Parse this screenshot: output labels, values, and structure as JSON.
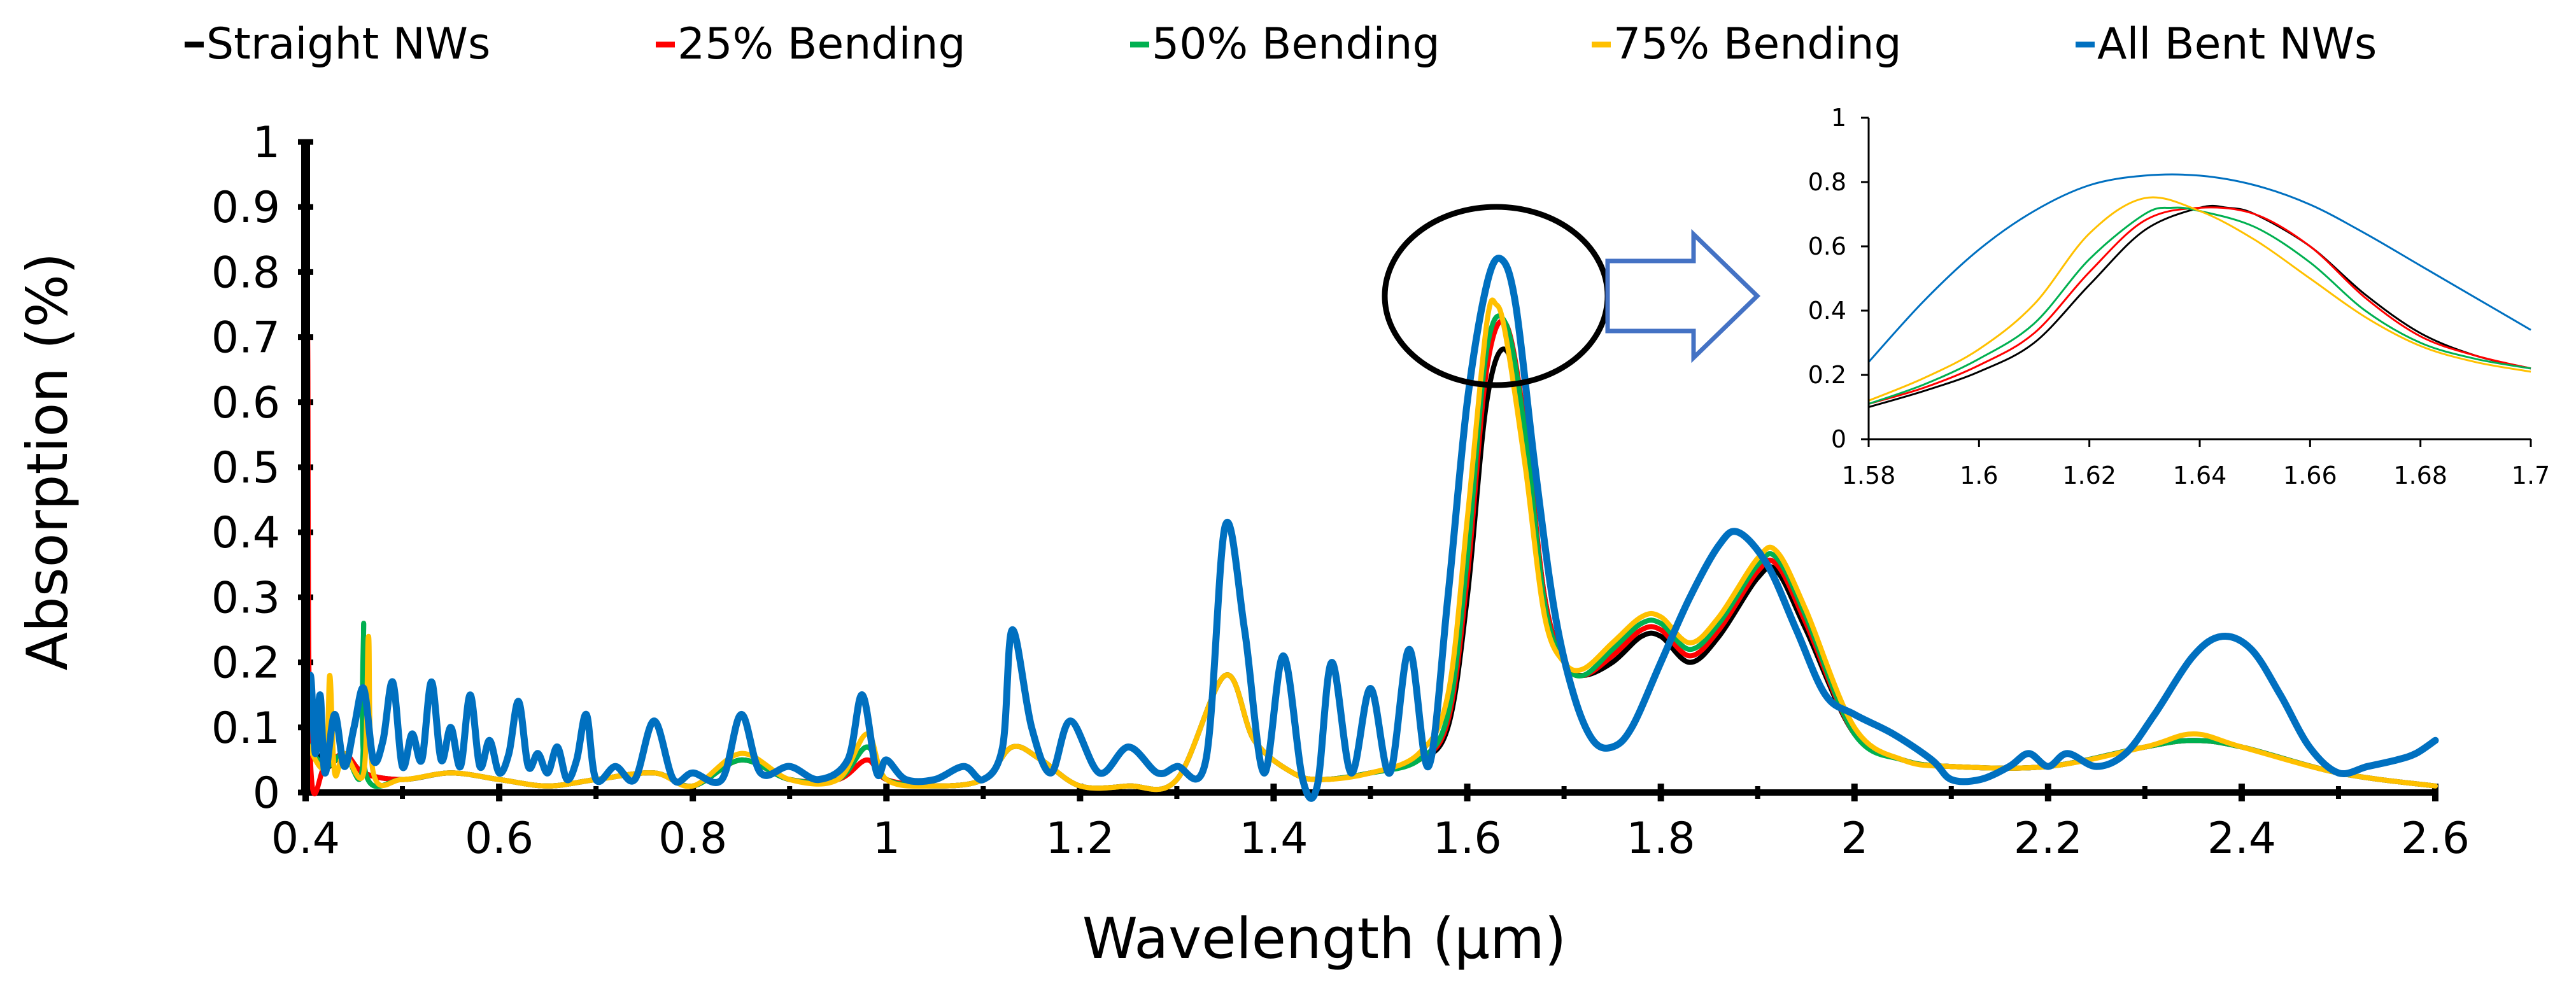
{
  "chart_data": [
    {
      "type": "line",
      "title": "",
      "xlabel": "Wavelength (µm)",
      "ylabel": "Absorption  (%)",
      "xlim": [
        0.4,
        2.6
      ],
      "ylim": [
        0,
        1
      ],
      "grid": false,
      "legend_position": "top",
      "x_ticks": [
        "0.4",
        "0.6",
        "0.8",
        "1",
        "1.2",
        "1.4",
        "1.6",
        "1.8",
        "2",
        "2.2",
        "2.4",
        "2.6"
      ],
      "y_ticks": [
        "0",
        "0.1",
        "0.2",
        "0.3",
        "0.4",
        "0.5",
        "0.6",
        "0.7",
        "0.8",
        "0.9",
        "1"
      ],
      "series": [
        {
          "name": "Straight NWs",
          "legend_label": "Straight NWs",
          "color": "#000000",
          "x": [
            0.4,
            0.42,
            0.44,
            0.46,
            0.5,
            0.55,
            0.6,
            0.65,
            0.7,
            0.76,
            0.8,
            0.85,
            0.9,
            0.95,
            0.98,
            1.0,
            1.05,
            1.1,
            1.13,
            1.16,
            1.2,
            1.25,
            1.3,
            1.35,
            1.38,
            1.42,
            1.45,
            1.5,
            1.55,
            1.58,
            1.6,
            1.62,
            1.64,
            1.66,
            1.68,
            1.7,
            1.72,
            1.75,
            1.78,
            1.8,
            1.83,
            1.86,
            1.9,
            1.92,
            1.95,
            2.0,
            2.05,
            2.1,
            2.2,
            2.3,
            2.35,
            2.4,
            2.5,
            2.6
          ],
          "y": [
            0.1,
            0.04,
            0.06,
            0.03,
            0.02,
            0.03,
            0.02,
            0.01,
            0.02,
            0.03,
            0.01,
            0.05,
            0.02,
            0.02,
            0.07,
            0.02,
            0.01,
            0.02,
            0.07,
            0.05,
            0.01,
            0.01,
            0.02,
            0.18,
            0.08,
            0.03,
            0.02,
            0.03,
            0.05,
            0.1,
            0.3,
            0.6,
            0.68,
            0.55,
            0.3,
            0.2,
            0.18,
            0.2,
            0.24,
            0.24,
            0.2,
            0.24,
            0.33,
            0.34,
            0.25,
            0.09,
            0.05,
            0.04,
            0.04,
            0.07,
            0.08,
            0.07,
            0.03,
            0.01
          ]
        },
        {
          "name": "25% Bending",
          "legend_label": "25% Bending",
          "color": "#ff0000",
          "x": [
            0.4,
            0.402,
            0.405,
            0.42,
            0.44,
            0.46,
            0.5,
            0.55,
            0.6,
            0.65,
            0.7,
            0.76,
            0.8,
            0.85,
            0.9,
            0.95,
            0.98,
            1.0,
            1.05,
            1.1,
            1.13,
            1.16,
            1.2,
            1.25,
            1.3,
            1.35,
            1.38,
            1.42,
            1.45,
            1.5,
            1.55,
            1.58,
            1.6,
            1.62,
            1.64,
            1.66,
            1.68,
            1.7,
            1.72,
            1.75,
            1.78,
            1.8,
            1.83,
            1.86,
            1.9,
            1.92,
            1.95,
            2.0,
            2.05,
            2.1,
            2.2,
            2.3,
            2.35,
            2.4,
            2.5,
            2.6
          ],
          "y": [
            0.05,
            0.7,
            0.05,
            0.04,
            0.06,
            0.03,
            0.02,
            0.03,
            0.02,
            0.01,
            0.02,
            0.03,
            0.01,
            0.05,
            0.02,
            0.02,
            0.05,
            0.02,
            0.01,
            0.02,
            0.07,
            0.05,
            0.01,
            0.01,
            0.02,
            0.18,
            0.08,
            0.03,
            0.02,
            0.03,
            0.05,
            0.11,
            0.33,
            0.65,
            0.72,
            0.56,
            0.3,
            0.2,
            0.18,
            0.21,
            0.25,
            0.25,
            0.21,
            0.25,
            0.34,
            0.35,
            0.26,
            0.09,
            0.05,
            0.04,
            0.04,
            0.07,
            0.08,
            0.07,
            0.03,
            0.01
          ]
        },
        {
          "name": "50% Bending",
          "legend_label": "50% Bending",
          "color": "#00b050",
          "x": [
            0.4,
            0.42,
            0.44,
            0.458,
            0.46,
            0.462,
            0.5,
            0.55,
            0.6,
            0.65,
            0.7,
            0.76,
            0.8,
            0.85,
            0.9,
            0.95,
            0.98,
            1.0,
            1.05,
            1.1,
            1.13,
            1.16,
            1.2,
            1.25,
            1.3,
            1.35,
            1.38,
            1.42,
            1.45,
            1.5,
            1.55,
            1.58,
            1.6,
            1.62,
            1.64,
            1.66,
            1.68,
            1.7,
            1.72,
            1.75,
            1.78,
            1.8,
            1.83,
            1.86,
            1.9,
            1.92,
            1.95,
            2.0,
            2.05,
            2.1,
            2.2,
            2.3,
            2.35,
            2.4,
            2.5,
            2.6
          ],
          "y": [
            0.08,
            0.04,
            0.06,
            0.03,
            0.26,
            0.03,
            0.02,
            0.03,
            0.02,
            0.01,
            0.02,
            0.03,
            0.01,
            0.05,
            0.02,
            0.02,
            0.07,
            0.02,
            0.01,
            0.02,
            0.07,
            0.05,
            0.01,
            0.01,
            0.02,
            0.18,
            0.08,
            0.03,
            0.02,
            0.03,
            0.05,
            0.12,
            0.36,
            0.68,
            0.72,
            0.55,
            0.29,
            0.2,
            0.18,
            0.22,
            0.26,
            0.26,
            0.22,
            0.26,
            0.35,
            0.36,
            0.27,
            0.09,
            0.05,
            0.04,
            0.04,
            0.07,
            0.08,
            0.07,
            0.03,
            0.01
          ]
        },
        {
          "name": "75% Bending",
          "legend_label": "75% Bending",
          "color": "#ffc000",
          "x": [
            0.4,
            0.42,
            0.425,
            0.43,
            0.44,
            0.46,
            0.465,
            0.47,
            0.5,
            0.55,
            0.6,
            0.65,
            0.7,
            0.76,
            0.8,
            0.85,
            0.9,
            0.95,
            0.98,
            1.0,
            1.05,
            1.1,
            1.13,
            1.16,
            1.2,
            1.25,
            1.3,
            1.35,
            1.38,
            1.42,
            1.45,
            1.5,
            1.55,
            1.58,
            1.6,
            1.62,
            1.63,
            1.64,
            1.66,
            1.68,
            1.7,
            1.72,
            1.75,
            1.78,
            1.8,
            1.83,
            1.86,
            1.9,
            1.92,
            1.95,
            2.0,
            2.05,
            2.1,
            2.2,
            2.3,
            2.35,
            2.4,
            2.5,
            2.6
          ],
          "y": [
            0.08,
            0.04,
            0.18,
            0.03,
            0.06,
            0.03,
            0.24,
            0.03,
            0.02,
            0.03,
            0.02,
            0.01,
            0.02,
            0.03,
            0.01,
            0.06,
            0.02,
            0.02,
            0.09,
            0.02,
            0.01,
            0.02,
            0.07,
            0.05,
            0.01,
            0.01,
            0.02,
            0.18,
            0.08,
            0.03,
            0.02,
            0.03,
            0.06,
            0.15,
            0.42,
            0.72,
            0.75,
            0.7,
            0.5,
            0.27,
            0.2,
            0.19,
            0.23,
            0.27,
            0.27,
            0.23,
            0.27,
            0.36,
            0.37,
            0.28,
            0.1,
            0.05,
            0.04,
            0.04,
            0.07,
            0.09,
            0.07,
            0.03,
            0.01
          ]
        },
        {
          "name": "All Bent NWs",
          "legend_label": "All Bent NWs",
          "color": "#0070c0",
          "x": [
            0.4,
            0.405,
            0.41,
            0.415,
            0.42,
            0.43,
            0.44,
            0.45,
            0.46,
            0.47,
            0.48,
            0.49,
            0.5,
            0.51,
            0.52,
            0.53,
            0.54,
            0.55,
            0.56,
            0.57,
            0.58,
            0.59,
            0.6,
            0.61,
            0.62,
            0.63,
            0.64,
            0.65,
            0.66,
            0.67,
            0.68,
            0.69,
            0.7,
            0.72,
            0.74,
            0.76,
            0.78,
            0.8,
            0.83,
            0.85,
            0.87,
            0.9,
            0.93,
            0.96,
            0.975,
            0.99,
            1.0,
            1.02,
            1.05,
            1.08,
            1.1,
            1.12,
            1.13,
            1.15,
            1.17,
            1.19,
            1.22,
            1.25,
            1.28,
            1.3,
            1.33,
            1.35,
            1.37,
            1.39,
            1.41,
            1.43,
            1.445,
            1.46,
            1.48,
            1.5,
            1.52,
            1.54,
            1.56,
            1.58,
            1.6,
            1.62,
            1.635,
            1.65,
            1.67,
            1.69,
            1.71,
            1.73,
            1.75,
            1.77,
            1.8,
            1.83,
            1.86,
            1.88,
            1.91,
            1.94,
            1.97,
            2.0,
            2.04,
            2.08,
            2.1,
            2.13,
            2.16,
            2.18,
            2.2,
            2.22,
            2.25,
            2.28,
            2.31,
            2.35,
            2.38,
            2.41,
            2.44,
            2.47,
            2.5,
            2.53,
            2.56,
            2.58,
            2.6
          ],
          "y": [
            0.08,
            0.18,
            0.06,
            0.15,
            0.03,
            0.12,
            0.04,
            0.1,
            0.16,
            0.05,
            0.08,
            0.17,
            0.04,
            0.09,
            0.05,
            0.17,
            0.05,
            0.1,
            0.04,
            0.15,
            0.04,
            0.08,
            0.03,
            0.06,
            0.14,
            0.04,
            0.06,
            0.03,
            0.07,
            0.02,
            0.05,
            0.12,
            0.02,
            0.04,
            0.02,
            0.11,
            0.02,
            0.03,
            0.02,
            0.12,
            0.03,
            0.04,
            0.02,
            0.05,
            0.15,
            0.03,
            0.05,
            0.02,
            0.02,
            0.04,
            0.02,
            0.07,
            0.25,
            0.1,
            0.03,
            0.11,
            0.03,
            0.07,
            0.03,
            0.04,
            0.05,
            0.41,
            0.25,
            0.03,
            0.21,
            0.02,
            0.01,
            0.2,
            0.03,
            0.16,
            0.03,
            0.22,
            0.04,
            0.3,
            0.6,
            0.78,
            0.82,
            0.75,
            0.5,
            0.28,
            0.15,
            0.08,
            0.07,
            0.1,
            0.2,
            0.3,
            0.38,
            0.4,
            0.35,
            0.25,
            0.15,
            0.12,
            0.09,
            0.05,
            0.02,
            0.02,
            0.04,
            0.06,
            0.04,
            0.06,
            0.04,
            0.06,
            0.12,
            0.21,
            0.24,
            0.22,
            0.15,
            0.07,
            0.03,
            0.04,
            0.05,
            0.06,
            0.08
          ]
        }
      ]
    },
    {
      "type": "line",
      "title": "",
      "xlabel": "",
      "ylabel": "",
      "xlim": [
        1.58,
        1.7
      ],
      "ylim": [
        0,
        1
      ],
      "grid": false,
      "legend_position": "none",
      "x_ticks": [
        "1.58",
        "1.6",
        "1.62",
        "1.64",
        "1.66",
        "1.68",
        "1.7"
      ],
      "y_ticks": [
        "0",
        "0.2",
        "0.4",
        "0.6",
        "0.8",
        "1"
      ],
      "series": [
        {
          "name": "Straight NWs",
          "color": "#000000",
          "x": [
            1.58,
            1.59,
            1.6,
            1.61,
            1.62,
            1.63,
            1.64,
            1.645,
            1.65,
            1.66,
            1.67,
            1.68,
            1.69,
            1.7
          ],
          "y": [
            0.1,
            0.15,
            0.21,
            0.3,
            0.48,
            0.65,
            0.72,
            0.72,
            0.7,
            0.6,
            0.45,
            0.33,
            0.26,
            0.22
          ]
        },
        {
          "name": "25% Bending",
          "color": "#ff0000",
          "x": [
            1.58,
            1.59,
            1.6,
            1.61,
            1.62,
            1.63,
            1.64,
            1.65,
            1.66,
            1.67,
            1.68,
            1.69,
            1.7
          ],
          "y": [
            0.11,
            0.16,
            0.23,
            0.33,
            0.52,
            0.68,
            0.72,
            0.7,
            0.6,
            0.44,
            0.32,
            0.26,
            0.22
          ]
        },
        {
          "name": "50% Bending",
          "color": "#00b050",
          "x": [
            1.58,
            1.59,
            1.6,
            1.61,
            1.62,
            1.63,
            1.635,
            1.64,
            1.65,
            1.66,
            1.67,
            1.68,
            1.69,
            1.7
          ],
          "y": [
            0.11,
            0.17,
            0.25,
            0.36,
            0.56,
            0.7,
            0.72,
            0.71,
            0.66,
            0.55,
            0.4,
            0.3,
            0.25,
            0.22
          ]
        },
        {
          "name": "75% Bending",
          "color": "#ffc000",
          "x": [
            1.58,
            1.59,
            1.6,
            1.61,
            1.62,
            1.63,
            1.64,
            1.65,
            1.66,
            1.67,
            1.68,
            1.69,
            1.7
          ],
          "y": [
            0.12,
            0.19,
            0.28,
            0.42,
            0.64,
            0.75,
            0.71,
            0.62,
            0.5,
            0.38,
            0.29,
            0.24,
            0.21
          ]
        },
        {
          "name": "All Bent NWs",
          "color": "#0070c0",
          "x": [
            1.58,
            1.59,
            1.6,
            1.61,
            1.62,
            1.63,
            1.64,
            1.65,
            1.66,
            1.67,
            1.68,
            1.69,
            1.7
          ],
          "y": [
            0.24,
            0.43,
            0.59,
            0.71,
            0.79,
            0.82,
            0.82,
            0.79,
            0.73,
            0.64,
            0.54,
            0.44,
            0.34
          ]
        }
      ]
    }
  ]
}
